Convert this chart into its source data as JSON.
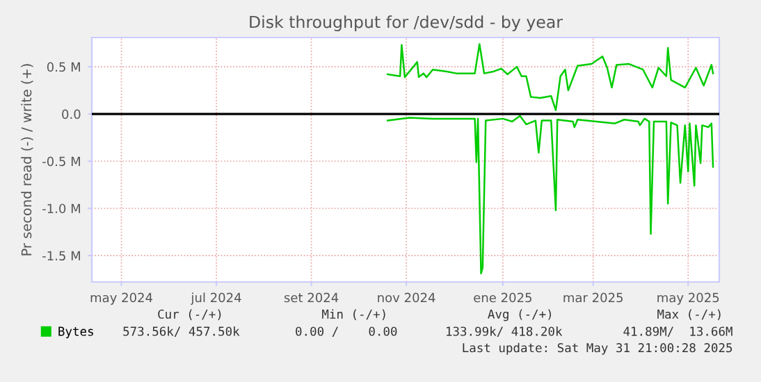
{
  "chart_data": {
    "type": "line",
    "title": "Disk throughput for /dev/sdd - by year",
    "ylabel": "Pr second read (-) / write (+)",
    "xlim": [
      "2024-04-27",
      "2025-06-04"
    ],
    "xticks": [
      {
        "value": "2024-05-16",
        "label": "may 2024"
      },
      {
        "value": "2024-07-16",
        "label": "jul 2024"
      },
      {
        "value": "2024-09-15",
        "label": "set 2024"
      },
      {
        "value": "2024-11-15",
        "label": "nov 2024"
      },
      {
        "value": "2025-01-16",
        "label": "ene 2025"
      },
      {
        "value": "2025-03-15",
        "label": "mar 2025"
      },
      {
        "value": "2025-05-15",
        "label": "may 2025"
      }
    ],
    "ylim": [
      -1.78,
      0.81
    ],
    "yticks": [
      {
        "value": -1.5,
        "label": "-1.5 M"
      },
      {
        "value": -1.0,
        "label": "-1.0 M"
      },
      {
        "value": -0.5,
        "label": "-0.5 M"
      },
      {
        "value": 0.0,
        "label": "0.0"
      },
      {
        "value": 0.5,
        "label": "0.5 M"
      }
    ],
    "grid": true,
    "legend": "bottom left",
    "ref_lines": [
      {
        "axis": "y",
        "value": 0,
        "label": null,
        "color": "#000000"
      }
    ],
    "series": [
      {
        "name": "Bytes",
        "color": "#00cc00",
        "x": [
          "2024-11-03",
          "2024-11-11",
          "2024-11-12",
          "2024-11-14",
          "2024-11-22",
          "2024-11-23",
          "2024-11-26",
          "2024-11-28",
          "2024-12-02",
          "2024-12-11",
          "2024-12-17",
          "2024-12-29",
          "2025-01-01",
          "2025-01-04",
          "2025-01-10",
          "2025-01-15",
          "2025-01-19",
          "2025-01-25",
          "2025-01-28",
          "2025-01-31",
          "2025-02-03",
          "2025-02-09",
          "2025-02-16",
          "2025-02-19",
          "2025-02-22",
          "2025-02-25",
          "2025-02-27",
          "2025-03-05",
          "2025-03-14",
          "2025-03-21",
          "2025-03-24",
          "2025-03-27",
          "2025-03-30",
          "2025-04-07",
          "2025-04-16",
          "2025-04-22",
          "2025-04-26",
          "2025-05-01",
          "2025-05-02",
          "2025-05-04",
          "2025-05-13",
          "2025-05-20",
          "2025-05-25",
          "2025-05-30",
          "2025-05-31"
        ],
        "values": [
          0.42,
          0.4,
          0.73,
          0.39,
          0.55,
          0.39,
          0.43,
          0.39,
          0.47,
          0.45,
          0.43,
          0.43,
          0.74,
          0.43,
          0.45,
          0.48,
          0.42,
          0.5,
          0.4,
          0.4,
          0.18,
          0.17,
          0.19,
          0.04,
          0.4,
          0.47,
          0.25,
          0.51,
          0.53,
          0.61,
          0.49,
          0.28,
          0.52,
          0.53,
          0.47,
          0.28,
          0.49,
          0.4,
          0.7,
          0.36,
          0.28,
          0.49,
          0.3,
          0.52,
          0.43
        ]
      },
      {
        "color": "#00cc00",
        "x": [
          "2024-11-03",
          "2024-11-17",
          "2024-12-02",
          "2024-12-29",
          "2024-12-30",
          "2024-12-31",
          "2025-01-02",
          "2025-01-03",
          "2025-01-05",
          "2025-01-16",
          "2025-01-22",
          "2025-01-27",
          "2025-01-31",
          "2025-02-06",
          "2025-02-08",
          "2025-02-10",
          "2025-02-16",
          "2025-02-19",
          "2025-02-20",
          "2025-03-02",
          "2025-03-03",
          "2025-03-05",
          "2025-03-17",
          "2025-03-29",
          "2025-04-04",
          "2025-04-13",
          "2025-04-14",
          "2025-04-17",
          "2025-04-20",
          "2025-04-21",
          "2025-04-23",
          "2025-05-01",
          "2025-05-02",
          "2025-05-04",
          "2025-05-08",
          "2025-05-10",
          "2025-05-13",
          "2025-05-15",
          "2025-05-16",
          "2025-05-19",
          "2025-05-20",
          "2025-05-23",
          "2025-05-24",
          "2025-05-28",
          "2025-05-30",
          "2025-05-31"
        ],
        "values": [
          -0.07,
          -0.04,
          -0.05,
          -0.05,
          -0.51,
          -0.05,
          -1.69,
          -1.63,
          -0.07,
          -0.05,
          -0.08,
          -0.02,
          -0.11,
          -0.07,
          -0.41,
          -0.07,
          -0.07,
          -1.02,
          -0.06,
          -0.08,
          -0.14,
          -0.06,
          -0.08,
          -0.1,
          -0.06,
          -0.08,
          -0.12,
          -0.05,
          -0.08,
          -1.27,
          -0.08,
          -0.08,
          -0.95,
          -0.09,
          -0.12,
          -0.73,
          -0.12,
          -0.61,
          -0.1,
          -0.76,
          -0.12,
          -0.52,
          -0.12,
          -0.14,
          -0.1,
          -0.56
        ]
      }
    ],
    "annotations": [
      "Cur (-/+)",
      "Min (-/+)",
      "Avg (-/+)",
      "Max (-/+)",
      "573.56k/ 457.50k",
      "0.00 /    0.00",
      "133.99k/ 418.20k",
      "41.89M/  13.66M",
      "Last update: Sat May 31 21:00:28 2025"
    ]
  }
}
